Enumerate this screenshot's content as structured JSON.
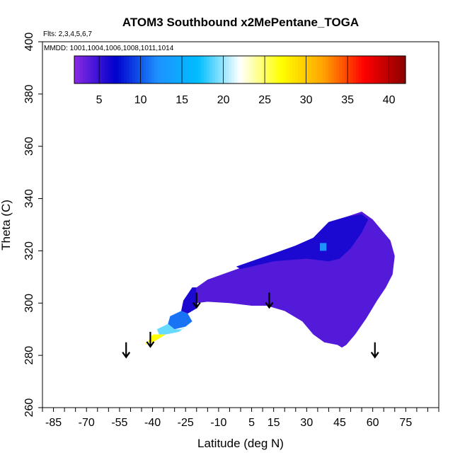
{
  "chart_data": {
    "type": "heatmap",
    "title": "ATOM3 Southbound x2MePentane_TOGA",
    "annotations": {
      "flights": "Flts: 2,3,4,5,6,7",
      "dates": "MMDD: 1001,1004,1006,1008,1011,1014"
    },
    "xlabel": "Latitude (deg N)",
    "ylabel": "Theta (C)",
    "xlim": [
      -90,
      90
    ],
    "ylim": [
      260,
      400
    ],
    "x_ticks": [
      -85,
      -70,
      -55,
      -40,
      -25,
      -10,
      5,
      15,
      30,
      45,
      60,
      75
    ],
    "x_tick_labels": [
      "-85",
      "-70",
      "-55",
      "-40",
      "-25",
      "-10",
      "5",
      "15",
      "30",
      "45",
      "60",
      "75"
    ],
    "y_ticks": [
      260,
      280,
      300,
      320,
      340,
      360,
      380,
      400
    ],
    "y_tick_labels": [
      "260",
      "280",
      "300",
      "320",
      "340",
      "360",
      "380",
      "400"
    ],
    "colorbar": {
      "range": [
        2,
        42
      ],
      "ticks": [
        5,
        10,
        15,
        20,
        25,
        30,
        35,
        40
      ],
      "tick_labels": [
        "5",
        "10",
        "15",
        "20",
        "25",
        "30",
        "35",
        "40"
      ],
      "colors": [
        "#8a2be2",
        "#0000cd",
        "#1e90ff",
        "#00bfff",
        "#ffffff",
        "#ffff00",
        "#ffa500",
        "#ff0000",
        "#8b0000"
      ]
    },
    "arrows_latitude": [
      -52,
      -41,
      -20,
      13,
      61
    ],
    "field_regions": [
      {
        "name": "main-band",
        "value": 4,
        "outline": [
          [
            -20,
            300
          ],
          [
            -15,
            300.5
          ],
          [
            -5,
            300
          ],
          [
            5,
            299
          ],
          [
            12,
            299
          ],
          [
            20,
            297
          ],
          [
            28,
            293
          ],
          [
            33,
            288
          ],
          [
            38,
            285
          ],
          [
            44,
            284
          ],
          [
            46,
            283
          ],
          [
            48,
            284
          ],
          [
            52,
            288
          ],
          [
            57,
            294
          ],
          [
            62,
            301
          ],
          [
            66,
            306
          ],
          [
            69,
            311
          ],
          [
            70,
            318
          ],
          [
            68,
            324
          ],
          [
            64,
            328
          ],
          [
            60,
            332
          ],
          [
            55,
            335
          ],
          [
            48,
            333
          ],
          [
            40,
            331
          ],
          [
            33,
            325
          ],
          [
            25,
            322
          ],
          [
            15,
            318
          ],
          [
            5,
            315
          ],
          [
            -5,
            312
          ],
          [
            -15,
            309
          ],
          [
            -20,
            306
          ]
        ]
      },
      {
        "name": "upper-dark",
        "value": 6,
        "outline": [
          [
            -2,
            314
          ],
          [
            15,
            319
          ],
          [
            25,
            322
          ],
          [
            33,
            325
          ],
          [
            40,
            331
          ],
          [
            48,
            333
          ],
          [
            55,
            334
          ],
          [
            58,
            332
          ],
          [
            55,
            327
          ],
          [
            50,
            321
          ],
          [
            45,
            317
          ],
          [
            40,
            316
          ],
          [
            30,
            317
          ],
          [
            15,
            316
          ],
          [
            0,
            313
          ]
        ]
      },
      {
        "name": "sh-dark",
        "value": 6,
        "outline": [
          [
            -26,
            301
          ],
          [
            -22,
            306
          ],
          [
            -20,
            306
          ],
          [
            -20,
            298
          ],
          [
            -24,
            296
          ],
          [
            -27,
            297
          ]
        ]
      },
      {
        "name": "sh-blue",
        "value": 11,
        "outline": [
          [
            -32,
            295
          ],
          [
            -27,
            297
          ],
          [
            -24,
            296
          ],
          [
            -22,
            293
          ],
          [
            -25,
            291
          ],
          [
            -30,
            290
          ],
          [
            -33,
            292
          ]
        ]
      },
      {
        "name": "sh-light",
        "value": 19,
        "outline": [
          [
            -38,
            290
          ],
          [
            -33,
            292
          ],
          [
            -30,
            290
          ],
          [
            -27,
            290
          ],
          [
            -25,
            291
          ],
          [
            -28,
            289
          ],
          [
            -34,
            288
          ],
          [
            -37,
            288
          ]
        ]
      },
      {
        "name": "sh-yellow",
        "value": 27,
        "outline": [
          [
            -43,
            284
          ],
          [
            -40,
            288
          ],
          [
            -37,
            288
          ],
          [
            -34,
            288
          ],
          [
            -40,
            285
          ],
          [
            -43,
            285
          ]
        ]
      },
      {
        "name": "mid-light-blue",
        "value": 12,
        "outline": [
          [
            36,
            320
          ],
          [
            39,
            320
          ],
          [
            39,
            323
          ],
          [
            36,
            323
          ]
        ]
      }
    ]
  }
}
